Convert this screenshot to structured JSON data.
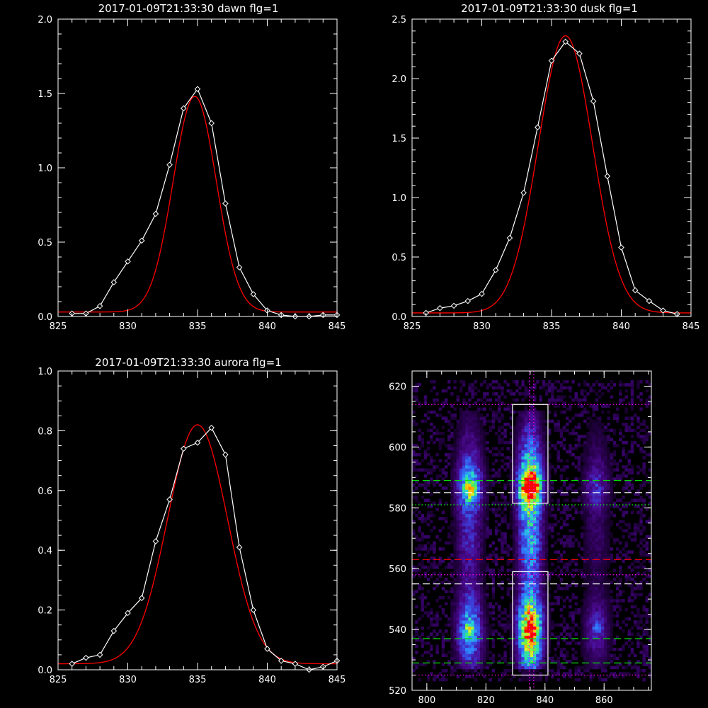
{
  "chart_data": [
    {
      "type": "line",
      "title": "2017-01-09T21:33:30 dawn flg=1",
      "xlim": [
        825,
        845
      ],
      "ylim": [
        0,
        2.0
      ],
      "xticks": [
        "825",
        "830",
        "835",
        "840",
        "845"
      ],
      "yticks": [
        "0.0",
        "0.5",
        "1.0",
        "1.5",
        "2.0"
      ],
      "x_minor_step": 1,
      "y_minor_step": 0.1,
      "grid": false,
      "series": [
        {
          "kind": "measured",
          "color": "#ffffff",
          "marker": "diamond",
          "x": [
            826,
            827,
            828,
            829,
            830,
            831,
            832,
            833,
            834,
            835,
            836,
            837,
            838,
            839,
            840,
            841,
            842,
            843,
            844,
            845
          ],
          "y": [
            0.02,
            0.02,
            0.07,
            0.23,
            0.37,
            0.51,
            0.69,
            1.02,
            1.4,
            1.53,
            1.3,
            0.76,
            0.33,
            0.15,
            0.04,
            0.01,
            0.0,
            0.0,
            0.01,
            0.01
          ]
        },
        {
          "kind": "gaussian-fit",
          "color": "#ff0000",
          "center": 834.8,
          "amplitude": 1.45,
          "sigma": 1.55,
          "offset": 0.03
        }
      ]
    },
    {
      "type": "line",
      "title": "2017-01-09T21:33:30 dusk flg=1",
      "xlim": [
        825,
        845
      ],
      "ylim": [
        0,
        2.5
      ],
      "xticks": [
        "825",
        "830",
        "835",
        "840",
        "845"
      ],
      "yticks": [
        "0.0",
        "0.5",
        "1.0",
        "1.5",
        "2.0",
        "2.5"
      ],
      "x_minor_step": 1,
      "y_minor_step": 0.1,
      "grid": false,
      "series": [
        {
          "kind": "measured",
          "color": "#ffffff",
          "marker": "diamond",
          "x": [
            826,
            827,
            828,
            829,
            830,
            831,
            832,
            833,
            834,
            835,
            836,
            837,
            838,
            839,
            840,
            841,
            842,
            843,
            844
          ],
          "y": [
            0.03,
            0.07,
            0.09,
            0.13,
            0.19,
            0.39,
            0.66,
            1.04,
            1.59,
            2.15,
            2.31,
            2.21,
            1.81,
            1.18,
            0.58,
            0.22,
            0.13,
            0.05,
            0.02
          ]
        },
        {
          "kind": "gaussian-fit",
          "color": "#ff0000",
          "center": 836.0,
          "amplitude": 2.33,
          "sigma": 1.95,
          "offset": 0.03
        }
      ]
    },
    {
      "type": "line",
      "title": "2017-01-09T21:33:30 aurora flg=1",
      "xlim": [
        825,
        845
      ],
      "ylim": [
        0,
        1.0
      ],
      "xticks": [
        "825",
        "830",
        "835",
        "840",
        "845"
      ],
      "yticks": [
        "0.0",
        "0.2",
        "0.4",
        "0.6",
        "0.8",
        "1.0"
      ],
      "x_minor_step": 1,
      "y_minor_step": 0.05,
      "grid": false,
      "series": [
        {
          "kind": "measured",
          "color": "#ffffff",
          "marker": "diamond",
          "x": [
            826,
            827,
            828,
            829,
            830,
            831,
            832,
            833,
            834,
            835,
            836,
            837,
            838,
            839,
            840,
            841,
            842,
            843,
            844,
            845
          ],
          "y": [
            0.02,
            0.04,
            0.05,
            0.13,
            0.19,
            0.24,
            0.43,
            0.57,
            0.74,
            0.76,
            0.81,
            0.72,
            0.41,
            0.2,
            0.07,
            0.03,
            0.02,
            0.0,
            0.01,
            0.03
          ]
        },
        {
          "kind": "gaussian-fit",
          "color": "#ff0000",
          "center": 835.0,
          "amplitude": 0.8,
          "sigma": 2.15,
          "offset": 0.02
        }
      ]
    },
    {
      "type": "heatmap",
      "title": "",
      "xlim": [
        795,
        876
      ],
      "ylim": [
        520,
        625
      ],
      "xticks": [
        "800",
        "820",
        "840",
        "860"
      ],
      "yticks": [
        "520",
        "540",
        "560",
        "580",
        "600",
        "620"
      ],
      "x_minor_step": 5,
      "y_minor_step": 5,
      "colormap": [
        "#000000",
        "#2a0050",
        "#4a0a90",
        "#3c3cd8",
        "#2f82ff",
        "#27d6d6",
        "#47f058",
        "#d8f52a",
        "#ffb000",
        "#ff0000"
      ],
      "emission_columns": [
        {
          "center": 814.5,
          "width": 3.2,
          "intensity": 0.55
        },
        {
          "center": 835.0,
          "width": 3.0,
          "intensity": 1.0
        },
        {
          "center": 857.5,
          "width": 3.2,
          "intensity": 0.28
        }
      ],
      "bright_spots": [
        {
          "x": 835.0,
          "y": 587,
          "intensity": 1.0
        },
        {
          "x": 835.0,
          "y": 540,
          "intensity": 0.95
        },
        {
          "x": 814.5,
          "y": 586,
          "intensity": 0.7
        },
        {
          "x": 814.5,
          "y": 540,
          "intensity": 0.6
        },
        {
          "x": 857.5,
          "y": 541,
          "intensity": 0.35
        }
      ],
      "boxes": [
        {
          "x": [
            829,
            841
          ],
          "y": [
            581.5,
            614
          ],
          "color": "#ffffff"
        },
        {
          "x": [
            829,
            841
          ],
          "y": [
            525,
            559
          ],
          "color": "#ffffff"
        }
      ],
      "vertical_lines": [
        {
          "x": 834.7,
          "color": "#ff00ff",
          "style": "dotted"
        },
        {
          "x": 836.2,
          "color": "#ff00ff",
          "style": "dotted"
        }
      ],
      "horizontal_lines": [
        {
          "y": 614,
          "color": "#ff00ff",
          "style": "dotted"
        },
        {
          "y": 589,
          "color": "#00e000",
          "style": "dashed"
        },
        {
          "y": 585,
          "color": "#ffffff",
          "style": "dashed"
        },
        {
          "y": 581,
          "color": "#00ff00",
          "style": "dotted"
        },
        {
          "y": 563,
          "color": "#ff0000",
          "style": "dashed"
        },
        {
          "y": 558,
          "color": "#ff00ff",
          "style": "dotted"
        },
        {
          "y": 555,
          "color": "#ffffff",
          "style": "dashed"
        },
        {
          "y": 537,
          "color": "#00e000",
          "style": "dashed"
        },
        {
          "y": 529,
          "color": "#00e000",
          "style": "dashed"
        },
        {
          "y": 525,
          "color": "#ff00ff",
          "style": "dotted"
        }
      ]
    }
  ]
}
